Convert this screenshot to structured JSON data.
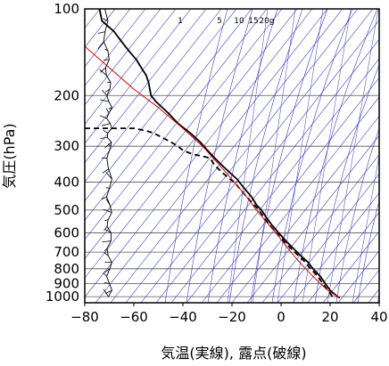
{
  "chart_data": {
    "type": "line",
    "title": "",
    "xlabel": "気温(実線), 露点(破線)",
    "ylabel": "気圧(hPa)",
    "x_range": [
      -80,
      40
    ],
    "y_range": [
      1050,
      100
    ],
    "y_scale": "log",
    "x_ticks": [
      -80,
      -60,
      -40,
      -20,
      0,
      20,
      40
    ],
    "x_tick_labels": [
      "−80",
      "−60",
      "−40",
      "−20",
      "0",
      "20",
      "40"
    ],
    "y_ticks": [
      100,
      200,
      300,
      400,
      500,
      600,
      700,
      800,
      900,
      1000
    ],
    "y_tick_labels": [
      "100",
      "200",
      "300",
      "400",
      "500",
      "600",
      "700",
      "800",
      "900",
      "1000"
    ],
    "mixing_ratio_labels": [
      "1",
      "5",
      "10",
      "15",
      "20g"
    ],
    "grid": true,
    "colors": {
      "temperature": "#000000",
      "dewpoint": "#000000",
      "reference": "#e00000",
      "grid": "#555555",
      "adiabats": "#3a3acc",
      "wind": "#000000"
    },
    "series": [
      {
        "name": "",
        "style": "solid",
        "color": "#000000",
        "points": [
          [
            100,
            -74
          ],
          [
            110,
            -73
          ],
          [
            120,
            -68
          ],
          [
            130,
            -65
          ],
          [
            140,
            -62
          ],
          [
            150,
            -59
          ],
          [
            160,
            -57
          ],
          [
            170,
            -55
          ],
          [
            180,
            -54
          ],
          [
            190,
            -53.5
          ],
          [
            200,
            -53
          ],
          [
            210,
            -51
          ],
          [
            230,
            -46
          ],
          [
            250,
            -42
          ],
          [
            270,
            -37
          ],
          [
            290,
            -33
          ],
          [
            310,
            -30
          ],
          [
            330,
            -27
          ],
          [
            350,
            -24
          ],
          [
            370,
            -21
          ],
          [
            390,
            -18
          ],
          [
            410,
            -16
          ],
          [
            430,
            -14
          ],
          [
            450,
            -12
          ],
          [
            480,
            -10
          ],
          [
            500,
            -8
          ],
          [
            530,
            -6
          ],
          [
            560,
            -4
          ],
          [
            600,
            -1
          ],
          [
            640,
            2
          ],
          [
            680,
            5
          ],
          [
            720,
            8
          ],
          [
            760,
            11
          ],
          [
            800,
            13
          ],
          [
            850,
            16
          ],
          [
            900,
            18
          ],
          [
            950,
            20
          ],
          [
            1000,
            23
          ],
          [
            1010,
            24
          ]
        ]
      },
      {
        "name": "",
        "style": "dashed",
        "color": "#000000",
        "points": [
          [
            260,
            -80
          ],
          [
            260,
            -60
          ],
          [
            265,
            -55
          ],
          [
            270,
            -52
          ],
          [
            290,
            -45
          ],
          [
            300,
            -42
          ],
          [
            310,
            -40
          ],
          [
            320,
            -36
          ],
          [
            325,
            -32
          ],
          [
            330,
            -29
          ],
          [
            350,
            -27
          ],
          [
            370,
            -24
          ],
          [
            390,
            -21
          ],
          [
            400,
            -19
          ],
          [
            420,
            -17
          ],
          [
            440,
            -15
          ],
          [
            460,
            -13
          ],
          [
            480,
            -11
          ],
          [
            500,
            -9
          ],
          [
            530,
            -7
          ],
          [
            560,
            -5
          ],
          [
            600,
            -2
          ],
          [
            640,
            1
          ],
          [
            680,
            4
          ],
          [
            720,
            7
          ],
          [
            760,
            10
          ],
          [
            800,
            12
          ],
          [
            850,
            15
          ],
          [
            900,
            17
          ],
          [
            950,
            19
          ],
          [
            1000,
            21
          ],
          [
            1010,
            22
          ]
        ]
      },
      {
        "name": "",
        "style": "solid",
        "color": "#e00000",
        "points": [
          [
            135,
            -80
          ],
          [
            160,
            -70
          ],
          [
            190,
            -60
          ],
          [
            220,
            -50
          ],
          [
            260,
            -40
          ],
          [
            300,
            -32
          ],
          [
            350,
            -25
          ],
          [
            400,
            -19
          ],
          [
            450,
            -14
          ],
          [
            500,
            -10
          ],
          [
            550,
            -6
          ],
          [
            600,
            -2
          ],
          [
            650,
            1
          ],
          [
            700,
            4
          ],
          [
            750,
            7
          ],
          [
            800,
            10
          ],
          [
            850,
            13
          ],
          [
            900,
            16
          ],
          [
            950,
            19
          ],
          [
            1000,
            23
          ],
          [
            1010,
            24
          ]
        ]
      }
    ],
    "wind_barbs": {
      "x_position": -70,
      "pressures": [
        100,
        110,
        120,
        130,
        140,
        150,
        160,
        170,
        180,
        190,
        200,
        210,
        220,
        230,
        240,
        250,
        260,
        270,
        280,
        290,
        300,
        330,
        360,
        390,
        420,
        450,
        480,
        510,
        540,
        570,
        600,
        640,
        680,
        720,
        760,
        800,
        850,
        900,
        950,
        1000
      ]
    }
  }
}
